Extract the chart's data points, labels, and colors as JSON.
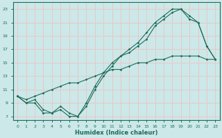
{
  "xlabel": "Humidex (Indice chaleur)",
  "bg_color": "#cce8e8",
  "grid_color": "#e8c8c8",
  "line_color": "#1a6b5a",
  "xlim": [
    -0.5,
    23.5
  ],
  "ylim": [
    6.5,
    24.0
  ],
  "xticks": [
    0,
    1,
    2,
    3,
    4,
    5,
    6,
    7,
    8,
    9,
    10,
    11,
    12,
    13,
    14,
    15,
    16,
    17,
    18,
    19,
    20,
    21,
    22,
    23
  ],
  "yticks": [
    7,
    9,
    11,
    13,
    15,
    17,
    19,
    21,
    23
  ],
  "line1_x": [
    0,
    1,
    2,
    3,
    4,
    5,
    6,
    7,
    8,
    9,
    10,
    11,
    12,
    13,
    14,
    15,
    16,
    17,
    18,
    19,
    20,
    21,
    22,
    23
  ],
  "line1_y": [
    10,
    9,
    9,
    7.5,
    7.5,
    8,
    7,
    7,
    8.5,
    11,
    13,
    14.5,
    16,
    16.5,
    17.5,
    18.5,
    20.5,
    21.5,
    22.5,
    23,
    21.5,
    21,
    17.5,
    15.5
  ],
  "line2_x": [
    0,
    1,
    2,
    3,
    4,
    5,
    6,
    7,
    8,
    9,
    10,
    11,
    12,
    13,
    14,
    15,
    16,
    17,
    18,
    19,
    20,
    21,
    22,
    23
  ],
  "line2_y": [
    10,
    9,
    9.5,
    8,
    7.5,
    8.5,
    7.5,
    7,
    9,
    11.5,
    13.5,
    15,
    16,
    17,
    18,
    19.5,
    21,
    22,
    23,
    23,
    22,
    21,
    17.5,
    15.5
  ],
  "line3_x": [
    0,
    1,
    2,
    3,
    4,
    5,
    6,
    7,
    8,
    9,
    10,
    11,
    12,
    13,
    14,
    15,
    16,
    17,
    18,
    19,
    20,
    21,
    22,
    23
  ],
  "line3_y": [
    10,
    9.5,
    10,
    10.5,
    11,
    11.5,
    12,
    12,
    12.5,
    13,
    13.5,
    14,
    14,
    14.5,
    15,
    15,
    15.5,
    15.5,
    16,
    16,
    16,
    16,
    15.5,
    15.5
  ]
}
